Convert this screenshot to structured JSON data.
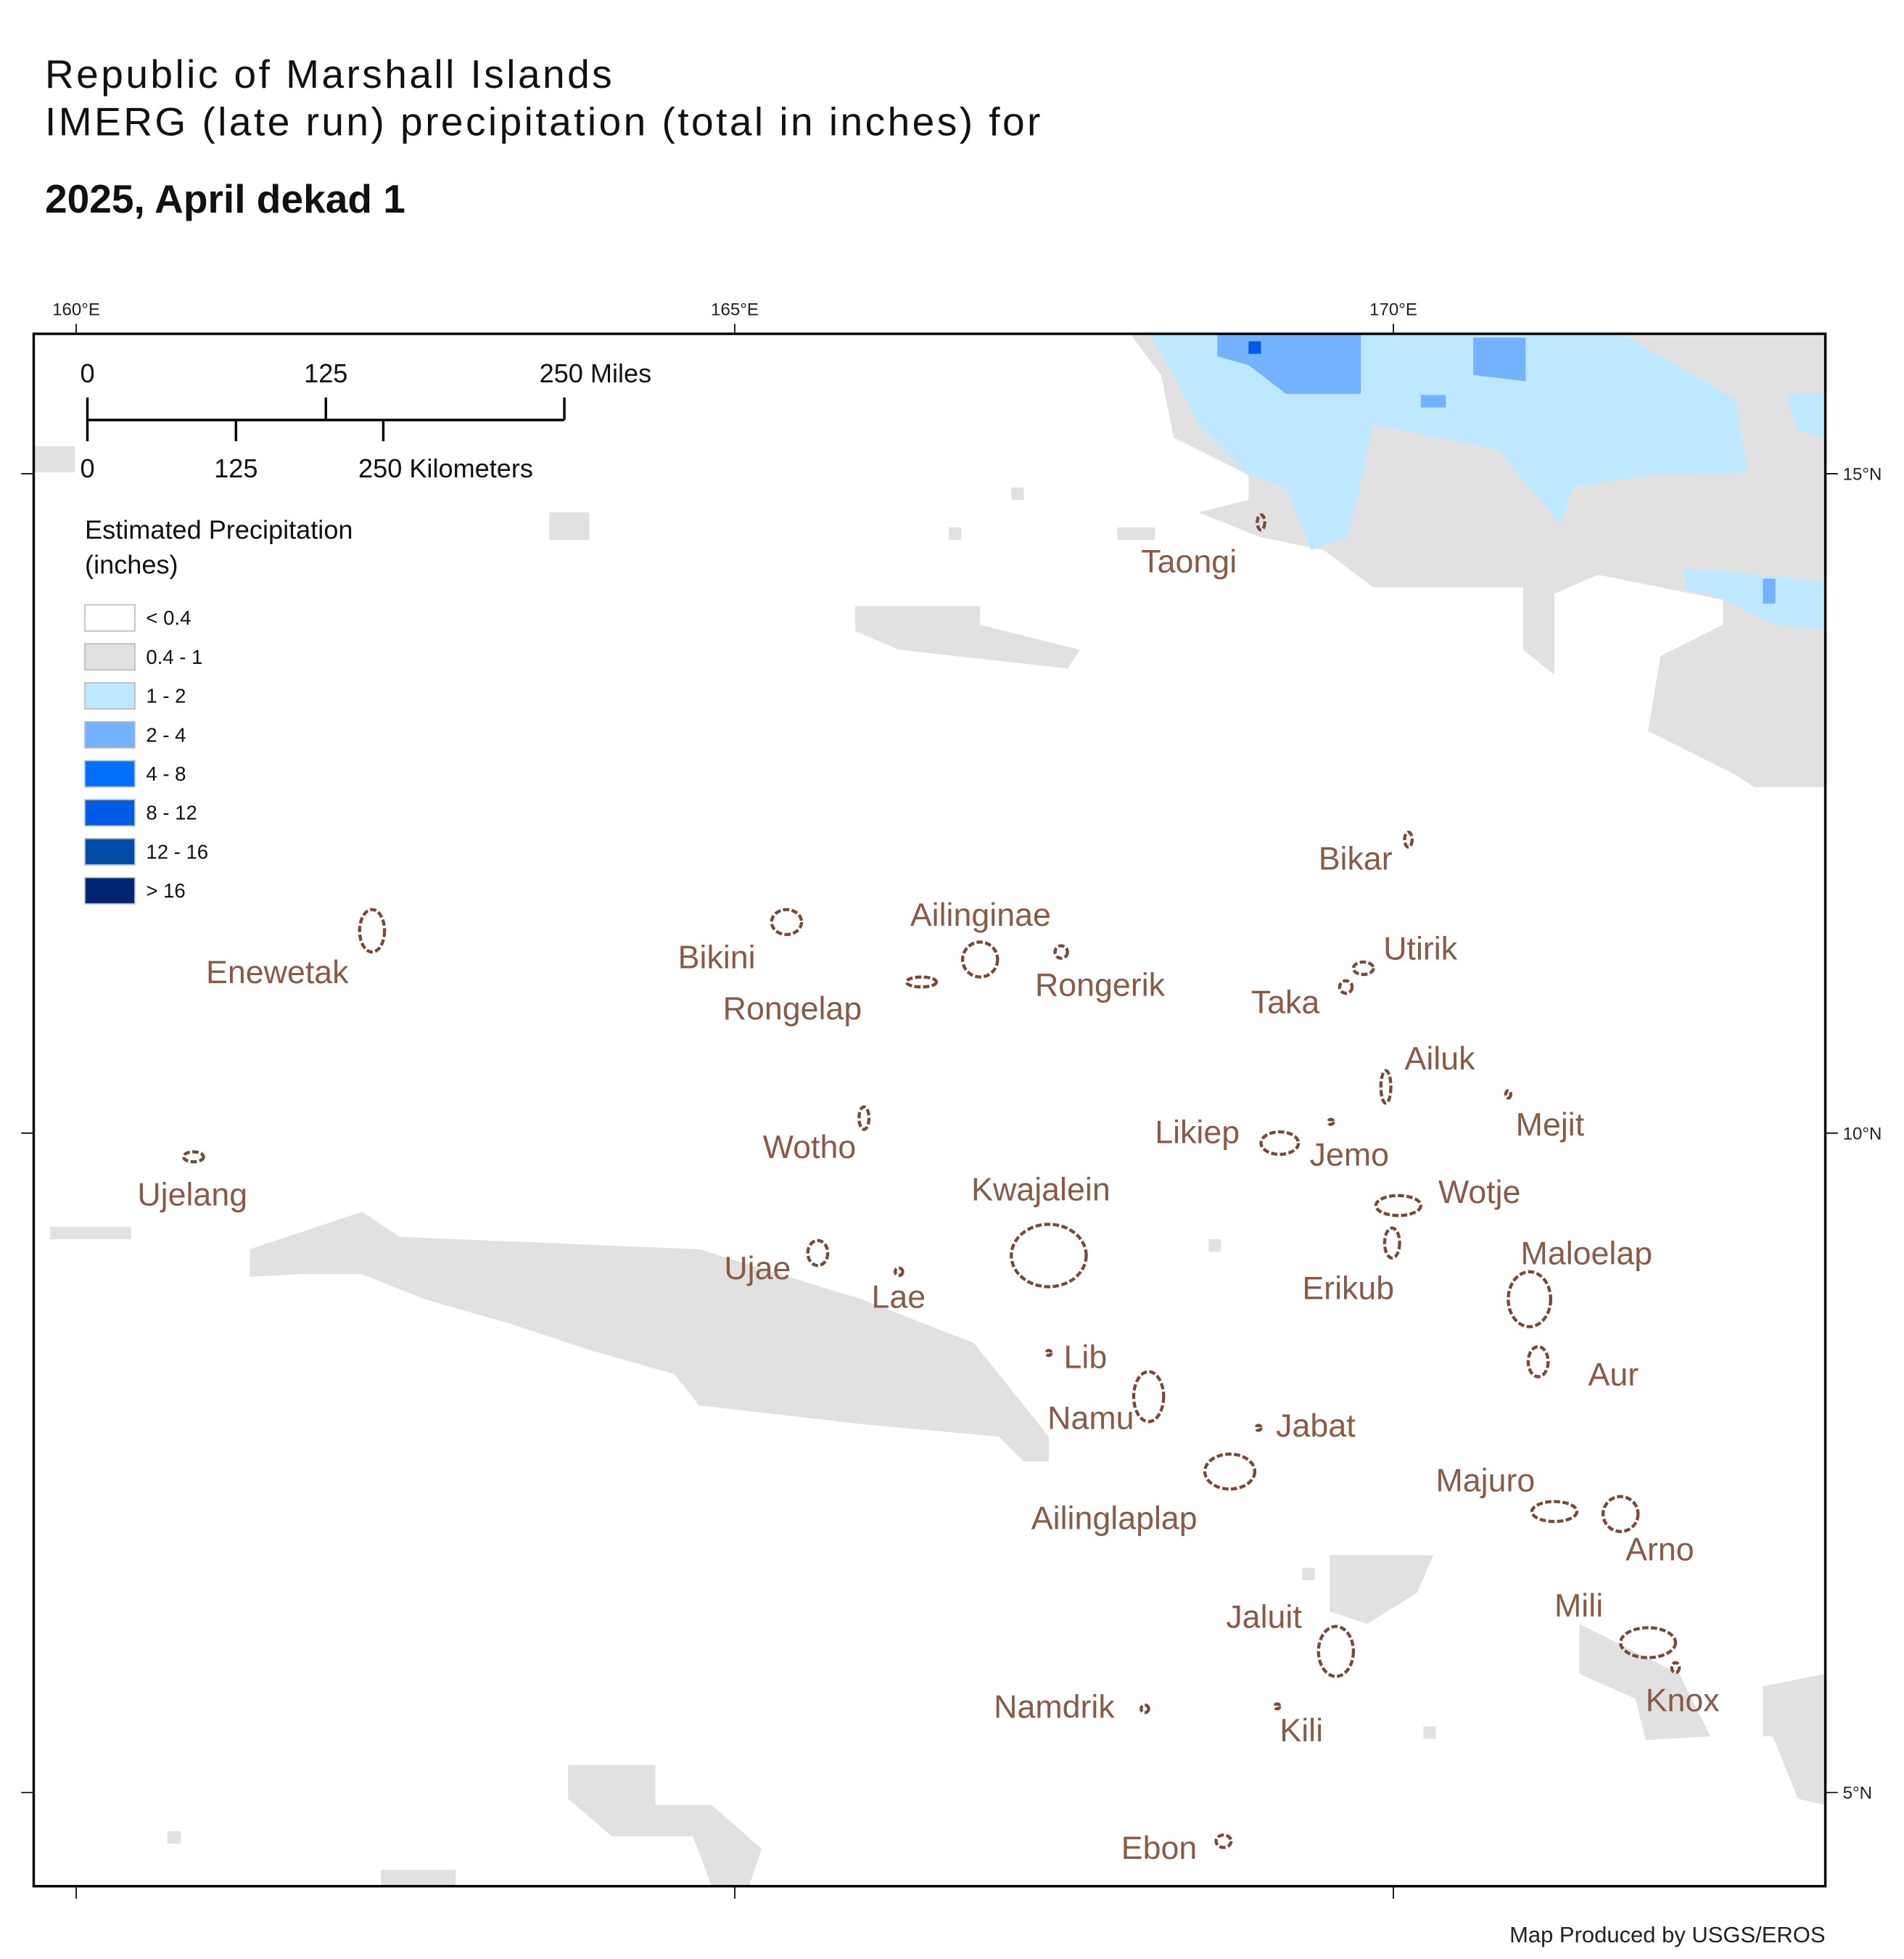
{
  "title": [
    "Republic of Marshall Islands",
    "IMERG (late run) precipitation (total in inches) for"
  ],
  "subtitle": "2025, April dekad 1",
  "map": {
    "lon_ticks": [
      {
        "value": 160,
        "label": "160°E"
      },
      {
        "value": 165,
        "label": "165°E"
      },
      {
        "value": 170,
        "label": "170°E"
      }
    ],
    "lat_ticks": [
      {
        "value": 15,
        "label": "15°N"
      },
      {
        "value": 10,
        "label": "10°N"
      },
      {
        "value": 5,
        "label": "5°N"
      }
    ],
    "scale_bar": {
      "miles": [
        "0",
        "125",
        "250 Miles"
      ],
      "kilometers": [
        "0",
        "125",
        "250 Kilometers"
      ]
    },
    "legend": {
      "title": [
        "Estimated Precipitation",
        "(inches)"
      ],
      "classes": [
        {
          "label": "< 0.4",
          "color": "#ffffff"
        },
        {
          "label": "0.4 - 1",
          "color": "#e1e1e1"
        },
        {
          "label": "1 - 2",
          "color": "#bee8ff"
        },
        {
          "label": "2 - 4",
          "color": "#73b2ff"
        },
        {
          "label": "4 - 8",
          "color": "#0070ff"
        },
        {
          "label": "8 - 12",
          "color": "#005ce6"
        },
        {
          "label": "12 - 16",
          "color": "#004da8"
        },
        {
          "label": "> 16",
          "color": "#002673"
        }
      ]
    },
    "atolls": [
      "Taongi",
      "Bikar",
      "Ailinginae",
      "Utirik",
      "Bikini",
      "Enewetak",
      "Rongerik",
      "Taka",
      "Rongelap",
      "Ailuk",
      "Mejit",
      "Likiep",
      "Jemo",
      "Wotho",
      "Kwajalein",
      "Wotje",
      "Ujelang",
      "Maloelap",
      "Ujae",
      "Erikub",
      "Lae",
      "Lib",
      "Aur",
      "Namu",
      "Jabat",
      "Majuro",
      "Ailinglaplap",
      "Arno",
      "Mili",
      "Jaluit",
      "Knox",
      "Namdrik",
      "Kili",
      "Ebon"
    ]
  },
  "credit": "Map Produced by USGS/EROS"
}
